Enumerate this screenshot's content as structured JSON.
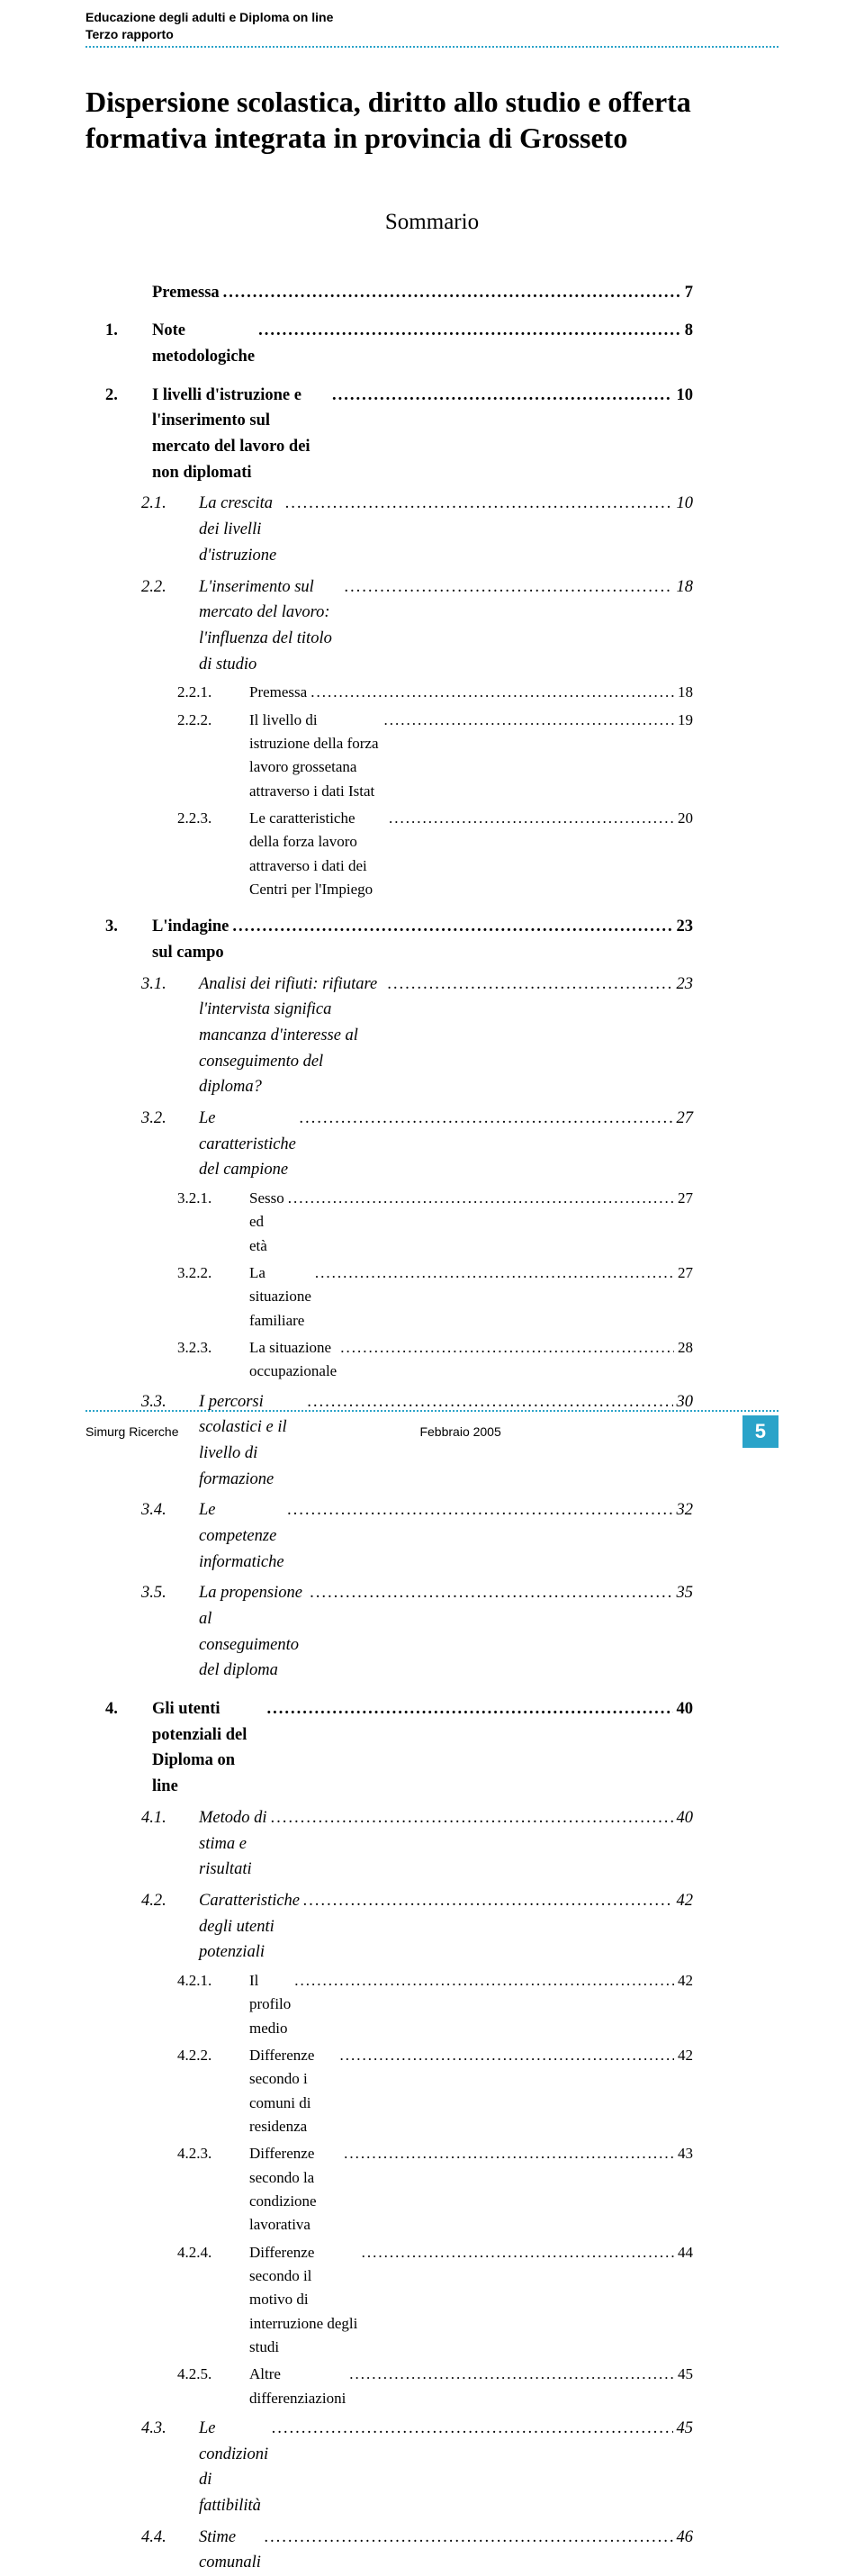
{
  "header": {
    "line1": "Educazione degli adulti e Diploma on line",
    "line2": "Terzo rapporto"
  },
  "title": "Dispersione scolastica, diritto allo studio e offerta formativa integrata in provincia di Grosseto",
  "summary_heading": "Sommario",
  "toc": [
    {
      "level": 1,
      "num": "",
      "label": "Premessa",
      "page": "7"
    },
    {
      "level": 1,
      "num": "1.",
      "label": "Note metodologiche",
      "page": "8"
    },
    {
      "level": 1,
      "num": "2.",
      "label": "I livelli d'istruzione e l'inserimento sul mercato del lavoro dei non diplomati",
      "page": "10"
    },
    {
      "level": 2,
      "num": "2.1.",
      "label": "La crescita dei livelli d'istruzione",
      "page": "10"
    },
    {
      "level": 2,
      "num": "2.2.",
      "label": "L'inserimento sul mercato del lavoro: l'influenza del titolo di studio",
      "page": "18"
    },
    {
      "level": 3,
      "num": "2.2.1.",
      "label": "Premessa",
      "page": "18"
    },
    {
      "level": 3,
      "num": "2.2.2.",
      "label": "Il livello di istruzione della forza lavoro grossetana attraverso i dati Istat",
      "page": "19"
    },
    {
      "level": 3,
      "num": "2.2.3.",
      "label": "Le caratteristiche della forza lavoro attraverso i dati dei Centri per l'Impiego",
      "page": "20"
    },
    {
      "level": 1,
      "num": "3.",
      "label": "L'indagine sul campo",
      "page": "23"
    },
    {
      "level": 2,
      "num": "3.1.",
      "label": "Analisi dei rifiuti: rifiutare l'intervista significa mancanza d'interesse al conseguimento del diploma?",
      "page": "23"
    },
    {
      "level": 2,
      "num": "3.2.",
      "label": "Le caratteristiche del campione",
      "page": "27"
    },
    {
      "level": 3,
      "num": "3.2.1.",
      "label": "Sesso ed età",
      "page": "27"
    },
    {
      "level": 3,
      "num": "3.2.2.",
      "label": "La situazione familiare",
      "page": "27"
    },
    {
      "level": 3,
      "num": "3.2.3.",
      "label": "La situazione occupazionale",
      "page": "28"
    },
    {
      "level": 2,
      "num": "3.3.",
      "label": "I percorsi scolastici e il livello di formazione",
      "page": "30"
    },
    {
      "level": 2,
      "num": "3.4.",
      "label": "Le competenze informatiche",
      "page": "32"
    },
    {
      "level": 2,
      "num": "3.5.",
      "label": "La propensione al conseguimento del diploma",
      "page": "35"
    },
    {
      "level": 1,
      "num": "4.",
      "label": "Gli utenti potenziali del Diploma on line",
      "page": "40"
    },
    {
      "level": 2,
      "num": "4.1.",
      "label": "Metodo di stima e risultati",
      "page": "40"
    },
    {
      "level": 2,
      "num": "4.2.",
      "label": "Caratteristiche degli utenti potenziali",
      "page": "42"
    },
    {
      "level": 3,
      "num": "4.2.1.",
      "label": "Il profilo medio",
      "page": "42"
    },
    {
      "level": 3,
      "num": "4.2.2.",
      "label": "Differenze secondo i comuni di residenza",
      "page": "42"
    },
    {
      "level": 3,
      "num": "4.2.3.",
      "label": "Differenze secondo la condizione lavorativa",
      "page": "43"
    },
    {
      "level": 3,
      "num": "4.2.4.",
      "label": "Differenze secondo il motivo di interruzione degli studi",
      "page": "44"
    },
    {
      "level": 3,
      "num": "4.2.5.",
      "label": "Altre differenziazioni",
      "page": "45"
    },
    {
      "level": 2,
      "num": "4.3.",
      "label": "Le condizioni di fattibilità",
      "page": "45"
    },
    {
      "level": 2,
      "num": "4.4.",
      "label": "Stime comunali",
      "page": "46"
    }
  ],
  "footer": {
    "left": "Simurg Ricerche",
    "center": "Febbraio 2005",
    "page_number": "5"
  },
  "colors": {
    "accent": "#2aa3c9",
    "text": "#000000",
    "bg": "#ffffff"
  }
}
